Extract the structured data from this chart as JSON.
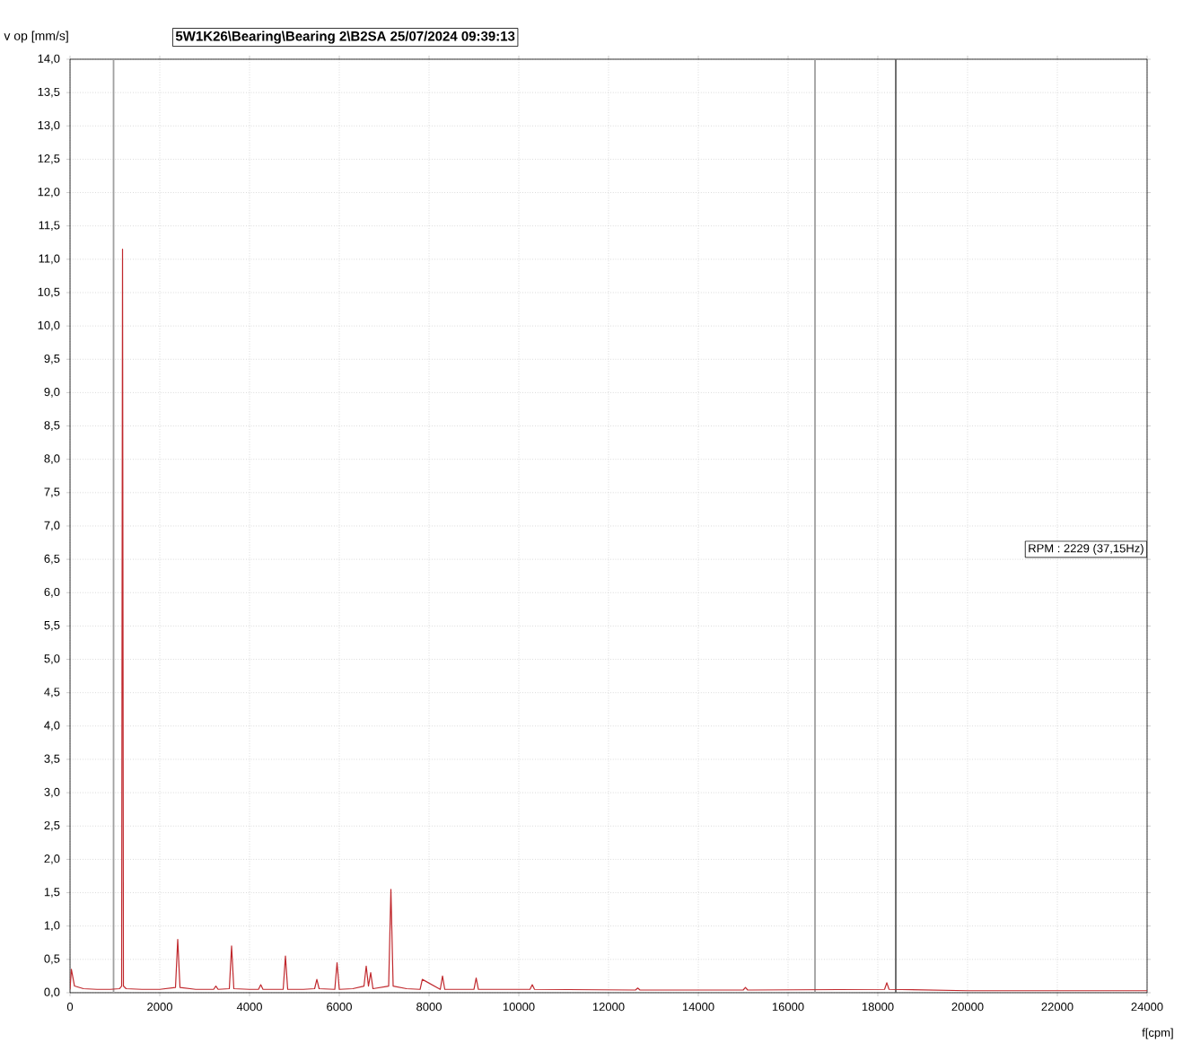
{
  "chart_data": {
    "type": "line",
    "title": "5W1K26\\Bearing\\Bearing 2\\B2SA 25/07/2024 09:39:13",
    "xlabel": "f[cpm]",
    "ylabel": "v op [mm/s]",
    "annotations": [
      "RPM : 2229 (37,15Hz)"
    ],
    "series": [
      {
        "color": "#c0282d",
        "x": [
          0,
          30,
          100,
          300,
          600,
          900,
          1100,
          1150,
          1170,
          1190,
          1250,
          1600,
          2000,
          2350,
          2400,
          2450,
          2800,
          3200,
          3250,
          3300,
          3550,
          3600,
          3650,
          4000,
          4200,
          4250,
          4300,
          4750,
          4800,
          4850,
          5200,
          5450,
          5500,
          5550,
          5900,
          5950,
          6000,
          6300,
          6550,
          6600,
          6650,
          6700,
          6750,
          7100,
          7150,
          7200,
          7500,
          7800,
          7850,
          8250,
          8300,
          8350,
          9000,
          9050,
          9100,
          9500,
          10250,
          10300,
          10350,
          12600,
          12650,
          12700,
          15000,
          15050,
          15100,
          18150,
          18200,
          18250,
          20000,
          24000
        ],
        "values": [
          0.05,
          0.35,
          0.1,
          0.06,
          0.05,
          0.05,
          0.06,
          0.1,
          11.15,
          0.1,
          0.06,
          0.05,
          0.05,
          0.08,
          0.8,
          0.08,
          0.05,
          0.05,
          0.1,
          0.05,
          0.06,
          0.7,
          0.06,
          0.05,
          0.05,
          0.12,
          0.05,
          0.05,
          0.55,
          0.05,
          0.05,
          0.06,
          0.2,
          0.06,
          0.05,
          0.45,
          0.05,
          0.06,
          0.1,
          0.4,
          0.1,
          0.3,
          0.06,
          0.1,
          1.55,
          0.1,
          0.06,
          0.05,
          0.2,
          0.05,
          0.25,
          0.05,
          0.05,
          0.22,
          0.05,
          0.05,
          0.05,
          0.12,
          0.05,
          0.04,
          0.07,
          0.04,
          0.04,
          0.08,
          0.04,
          0.05,
          0.15,
          0.05,
          0.03,
          0.03
        ]
      }
    ],
    "xlim": [
      0,
      24000
    ],
    "ylim": [
      0,
      14
    ],
    "xticks": [
      0,
      2000,
      4000,
      6000,
      8000,
      10000,
      12000,
      14000,
      16000,
      18000,
      20000,
      22000,
      24000
    ],
    "yticks": [
      {
        "value": 0,
        "label": "0,0"
      },
      {
        "value": 0.5,
        "label": "0,5"
      },
      {
        "value": 1,
        "label": "1,0"
      },
      {
        "value": 1.5,
        "label": "1,5"
      },
      {
        "value": 2,
        "label": "2,0"
      },
      {
        "value": 2.5,
        "label": "2,5"
      },
      {
        "value": 3,
        "label": "3,0"
      },
      {
        "value": 3.5,
        "label": "3,5"
      },
      {
        "value": 4,
        "label": "4,0"
      },
      {
        "value": 4.5,
        "label": "4,5"
      },
      {
        "value": 5,
        "label": "5,0"
      },
      {
        "value": 5.5,
        "label": "5,5"
      },
      {
        "value": 6,
        "label": "6,0"
      },
      {
        "value": 6.5,
        "label": "6,5"
      },
      {
        "value": 7,
        "label": "7,0"
      },
      {
        "value": 7.5,
        "label": "7,5"
      },
      {
        "value": 8,
        "label": "8,0"
      },
      {
        "value": 8.5,
        "label": "8,5"
      },
      {
        "value": 9,
        "label": "9,0"
      },
      {
        "value": 9.5,
        "label": "9,5"
      },
      {
        "value": 10,
        "label": "10,0"
      },
      {
        "value": 10.5,
        "label": "10,5"
      },
      {
        "value": 11,
        "label": "11,0"
      },
      {
        "value": 11.5,
        "label": "11,5"
      },
      {
        "value": 12,
        "label": "12,0"
      },
      {
        "value": 12.5,
        "label": "12,5"
      },
      {
        "value": 13,
        "label": "13,0"
      },
      {
        "value": 13.5,
        "label": "13,5"
      },
      {
        "value": 14,
        "label": "14,0"
      }
    ],
    "grid": true,
    "marker": "none",
    "line_style": "solid",
    "ref_lines": [
      {
        "axis": "x",
        "value": 970,
        "color": "#a0a0a0"
      },
      {
        "axis": "x",
        "value": 16600,
        "color": "#a0a0a0"
      },
      {
        "axis": "x",
        "value": 18400,
        "color": "#606060"
      }
    ]
  }
}
